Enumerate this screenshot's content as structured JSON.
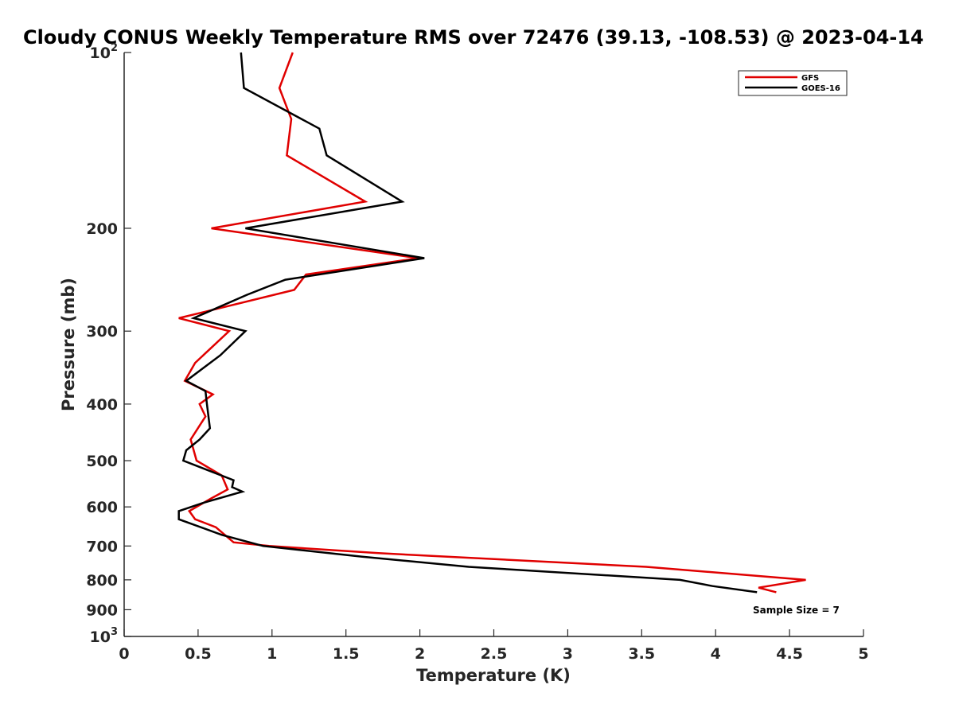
{
  "chart_data": {
    "type": "line",
    "title": "Cloudy CONUS Weekly Temperature RMS over 72476 (39.13, -108.53) @ 2023-04-14",
    "xlabel": "Temperature (K)",
    "ylabel": "Pressure (mb)",
    "xlim": [
      0,
      5
    ],
    "ylim": [
      100,
      1000
    ],
    "y_scale": "log",
    "y_reversed": true,
    "x_ticks": [
      0,
      0.5,
      1,
      1.5,
      2,
      2.5,
      3,
      3.5,
      4,
      4.5,
      5
    ],
    "x_tick_labels": [
      "0",
      "0.5",
      "1",
      "1.5",
      "2",
      "2.5",
      "3",
      "3.5",
      "4",
      "4.5",
      "5"
    ],
    "y_ticks": [
      100,
      200,
      300,
      400,
      500,
      600,
      700,
      800,
      900,
      1000
    ],
    "y_tick_labels": [
      {
        "base": "10",
        "exp": "2"
      },
      {
        "base": "200",
        "exp": ""
      },
      {
        "base": "300",
        "exp": ""
      },
      {
        "base": "400",
        "exp": ""
      },
      {
        "base": "500",
        "exp": ""
      },
      {
        "base": "600",
        "exp": ""
      },
      {
        "base": "700",
        "exp": ""
      },
      {
        "base": "800",
        "exp": ""
      },
      {
        "base": "900",
        "exp": ""
      },
      {
        "base": "10",
        "exp": "3"
      }
    ],
    "grid": false,
    "legend_position": "top-right",
    "annotation": "Sample Size = 7",
    "series": [
      {
        "name": "GFS",
        "color": "#e00000",
        "points": [
          [
            1.14,
            100
          ],
          [
            1.05,
            115
          ],
          [
            1.13,
            130
          ],
          [
            1.1,
            150
          ],
          [
            1.63,
            180
          ],
          [
            0.59,
            200
          ],
          [
            1.99,
            225
          ],
          [
            1.23,
            240
          ],
          [
            1.15,
            255
          ],
          [
            0.37,
            285
          ],
          [
            0.71,
            300
          ],
          [
            0.48,
            340
          ],
          [
            0.41,
            365
          ],
          [
            0.6,
            385
          ],
          [
            0.51,
            400
          ],
          [
            0.55,
            420
          ],
          [
            0.45,
            460
          ],
          [
            0.49,
            500
          ],
          [
            0.66,
            530
          ],
          [
            0.7,
            560
          ],
          [
            0.59,
            580
          ],
          [
            0.44,
            610
          ],
          [
            0.48,
            630
          ],
          [
            0.62,
            650
          ],
          [
            0.74,
            690
          ],
          [
            0.98,
            700
          ],
          [
            1.72,
            720
          ],
          [
            3.53,
            760
          ],
          [
            4.61,
            800
          ],
          [
            4.29,
            825
          ],
          [
            4.41,
            840
          ]
        ]
      },
      {
        "name": "GOES-16",
        "color": "#000000",
        "points": [
          [
            0.79,
            100
          ],
          [
            0.81,
            115
          ],
          [
            1.32,
            135
          ],
          [
            1.37,
            150
          ],
          [
            1.88,
            180
          ],
          [
            0.82,
            200
          ],
          [
            2.03,
            225
          ],
          [
            1.09,
            245
          ],
          [
            0.83,
            260
          ],
          [
            0.47,
            285
          ],
          [
            0.82,
            300
          ],
          [
            0.65,
            330
          ],
          [
            0.42,
            365
          ],
          [
            0.55,
            380
          ],
          [
            0.56,
            400
          ],
          [
            0.58,
            440
          ],
          [
            0.51,
            460
          ],
          [
            0.42,
            480
          ],
          [
            0.4,
            500
          ],
          [
            0.74,
            540
          ],
          [
            0.73,
            555
          ],
          [
            0.8,
            565
          ],
          [
            0.54,
            590
          ],
          [
            0.37,
            610
          ],
          [
            0.37,
            630
          ],
          [
            0.66,
            670
          ],
          [
            0.94,
            700
          ],
          [
            1.61,
            730
          ],
          [
            2.33,
            760
          ],
          [
            3.76,
            800
          ],
          [
            3.98,
            820
          ],
          [
            4.28,
            840
          ]
        ]
      }
    ]
  }
}
